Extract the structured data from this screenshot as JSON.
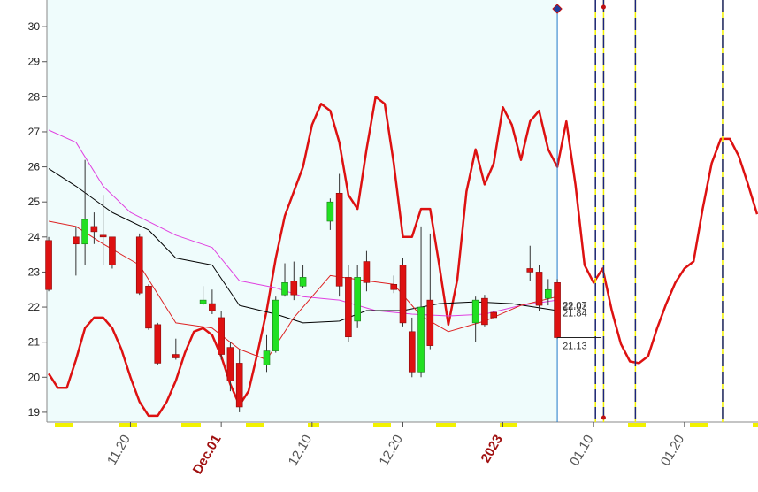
{
  "chart_data": {
    "type": "candlestick",
    "xlim": [
      -0.2,
      78.1
    ],
    "ylim": [
      18.72,
      30.76
    ],
    "yticks": [
      19,
      20,
      21,
      22,
      23,
      24,
      25,
      26,
      27,
      28,
      29,
      30
    ],
    "xticks": [
      {
        "value": 9,
        "label": "11.20"
      },
      {
        "value": 19,
        "label": "Dec.01"
      },
      {
        "value": 29,
        "label": "12.10"
      },
      {
        "value": 39,
        "label": "12.20"
      },
      {
        "value": 50,
        "label": "2023"
      },
      {
        "value": 60,
        "label": "01.10"
      },
      {
        "value": 70,
        "label": "01.20"
      }
    ],
    "highlight_xticks": [
      1,
      4
    ],
    "highlight_color": "#a01010",
    "up_color": "#22e022",
    "down_color": "#dd1111",
    "candles": {
      "x": [
        0,
        3,
        4,
        5,
        6,
        7,
        10,
        11,
        12,
        14,
        17,
        18,
        19,
        20,
        21,
        24,
        25,
        26,
        27,
        28,
        31,
        32,
        33,
        34,
        35,
        38,
        39,
        40,
        41,
        42,
        47,
        48,
        49,
        53,
        54,
        55,
        56
      ],
      "open": [
        23.9,
        24.0,
        23.8,
        24.3,
        24.05,
        24.0,
        24.0,
        22.6,
        21.5,
        20.65,
        22.1,
        22.1,
        21.7,
        20.85,
        20.4,
        20.35,
        20.75,
        22.35,
        22.75,
        22.6,
        24.45,
        25.25,
        22.85,
        21.6,
        23.3,
        22.65,
        23.2,
        21.3,
        20.15,
        22.2,
        21.55,
        22.25,
        21.85,
        23.1,
        23.0,
        22.25,
        22.7
      ],
      "high": [
        24.0,
        24.3,
        26.2,
        24.7,
        25.2,
        24.0,
        24.1,
        22.65,
        21.55,
        21.1,
        22.6,
        22.5,
        21.9,
        21.0,
        20.8,
        21.2,
        22.3,
        23.25,
        23.3,
        23.2,
        25.1,
        25.8,
        23.2,
        23.2,
        23.6,
        22.9,
        23.4,
        21.7,
        24.3,
        24.1,
        22.3,
        22.35,
        21.9,
        23.75,
        23.2,
        22.8,
        22.8
      ],
      "low": [
        22.45,
        22.9,
        23.2,
        23.8,
        23.2,
        23.1,
        22.35,
        21.35,
        20.35,
        20.5,
        22.05,
        21.8,
        20.5,
        19.6,
        19.0,
        20.15,
        20.7,
        22.3,
        22.2,
        22.55,
        24.2,
        22.3,
        21.0,
        21.4,
        22.45,
        22.4,
        21.45,
        20.0,
        20.0,
        20.8,
        21.0,
        21.45,
        21.65,
        22.75,
        21.9,
        22.05,
        21.1
      ],
      "close": [
        22.5,
        23.8,
        24.5,
        24.15,
        24.0,
        23.2,
        22.4,
        21.4,
        20.4,
        20.55,
        22.2,
        21.9,
        20.65,
        19.9,
        19.15,
        20.75,
        22.2,
        22.7,
        22.35,
        22.85,
        25.0,
        22.6,
        21.15,
        22.85,
        22.7,
        22.5,
        21.55,
        20.15,
        22.0,
        20.9,
        22.2,
        21.5,
        21.7,
        23.0,
        22.05,
        22.5,
        21.13
      ]
    },
    "series": [
      {
        "color": "#dd1111",
        "width": 2.5,
        "x": [
          0,
          1,
          2,
          3,
          4,
          5,
          6,
          7,
          8,
          9,
          10,
          11,
          12,
          13,
          14,
          15,
          16,
          17,
          18,
          19,
          20,
          21,
          22,
          23,
          24,
          25,
          26,
          27,
          28,
          29,
          30,
          31,
          32,
          33,
          34,
          35,
          36,
          37,
          38,
          39,
          40,
          41,
          42,
          43,
          44,
          45,
          46,
          47,
          48,
          49,
          50,
          51,
          52,
          53,
          54,
          55,
          56,
          57,
          58,
          59,
          60,
          61,
          62,
          63,
          64,
          65,
          66,
          67,
          68,
          69,
          70,
          71,
          72,
          73,
          74,
          75,
          76,
          77,
          78
        ],
        "values": [
          20.1,
          19.7,
          19.7,
          20.5,
          21.4,
          21.7,
          21.7,
          21.4,
          20.8,
          20.0,
          19.3,
          18.9,
          18.9,
          19.3,
          19.9,
          20.7,
          21.3,
          21.4,
          21.2,
          20.6,
          19.8,
          19.2,
          19.6,
          20.7,
          21.9,
          23.4,
          24.6,
          25.3,
          26.0,
          27.2,
          27.8,
          27.6,
          26.7,
          25.2,
          24.8,
          26.5,
          28.0,
          27.8,
          26.1,
          24.0,
          24.0,
          24.8,
          24.8,
          23.2,
          21.5,
          22.8,
          25.3,
          26.5,
          25.5,
          26.1,
          27.7,
          27.2,
          26.2,
          27.3,
          27.6,
          26.5,
          26.0,
          27.3,
          25.5,
          23.2,
          22.7,
          23.1,
          21.9,
          20.95,
          20.45,
          20.4,
          20.6,
          21.4,
          22.1,
          22.7,
          23.1,
          23.3,
          24.8,
          26.1,
          26.8,
          26.8,
          26.3,
          25.5,
          24.65
        ]
      },
      {
        "color": "#e040e0",
        "width": 1,
        "x": [
          0,
          3,
          6,
          9,
          14,
          18,
          21,
          25,
          28,
          32,
          36,
          40,
          44,
          48,
          52,
          56
        ],
        "values": [
          27.05,
          26.7,
          25.45,
          24.7,
          24.05,
          23.7,
          22.75,
          22.55,
          22.3,
          22.2,
          21.9,
          21.8,
          21.75,
          21.8,
          22.05,
          22.2
        ]
      },
      {
        "color": "#000000",
        "width": 1,
        "x": [
          0,
          3,
          7,
          11,
          14,
          18,
          21,
          25,
          28,
          32,
          35,
          39,
          43,
          47,
          51,
          56
        ],
        "values": [
          25.95,
          25.45,
          24.7,
          24.2,
          23.4,
          23.2,
          22.05,
          21.8,
          21.55,
          21.6,
          21.9,
          21.9,
          22.1,
          22.15,
          22.1,
          21.9
        ]
      },
      {
        "color": "#dd2222",
        "width": 1,
        "x": [
          0,
          3,
          6,
          10,
          14,
          18,
          21,
          24,
          27,
          31,
          35,
          38,
          41,
          44,
          48,
          52,
          56
        ],
        "values": [
          24.45,
          24.3,
          23.8,
          23.2,
          21.55,
          21.4,
          20.8,
          20.5,
          21.7,
          22.9,
          22.75,
          22.65,
          21.75,
          21.3,
          21.6,
          22.05,
          22.3
        ]
      }
    ],
    "annotations": [
      {
        "value": 22.07,
        "label": "22.07"
      },
      {
        "value": 22.03,
        "label": "22.03"
      },
      {
        "value": 21.84,
        "label": "21.84"
      },
      {
        "value": 21.13,
        "label": "21.13"
      }
    ],
    "vlines": [
      {
        "x": 56,
        "color": "#1f78c8",
        "dash": false
      },
      {
        "x": 60.2,
        "color": "#1a237e",
        "dash": true
      },
      {
        "x": 61.1,
        "color": "#1a237e",
        "dash": true
      },
      {
        "x": 64.6,
        "color": "#1a237e",
        "dash": true
      },
      {
        "x": 74.2,
        "color": "#1a237e",
        "dash": true
      }
    ]
  }
}
